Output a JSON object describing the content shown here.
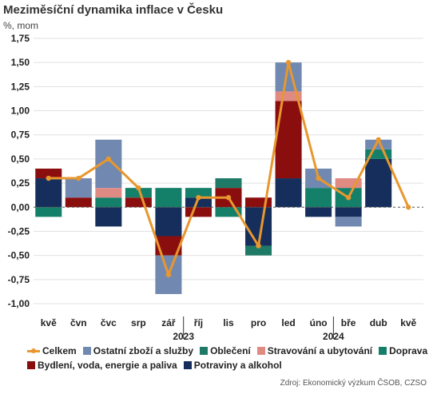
{
  "title": "Meziměsíční dynamika inflace v Česku",
  "unit": "%, mom",
  "source": "Zdroj: Ekonomický výzkum ČSOB, CZSO",
  "colors": {
    "ostatni": "#7189B0",
    "obleceni": "#1E7A66",
    "stravovani": "#E08A84",
    "doprava": "#14806A",
    "bydleni": "#8B0E0E",
    "potraviny": "#152E5B",
    "celkem": "#E8972F"
  },
  "chart_data": {
    "type": "bar",
    "stacked": true,
    "categories": [
      "kvě",
      "čvn",
      "čvc",
      "srp",
      "zář",
      "říj",
      "lis",
      "pro",
      "led",
      "úno",
      "bře",
      "dub",
      "kvě"
    ],
    "year_labels": [
      {
        "label": "2023",
        "after_index": 4
      },
      {
        "label": "2024",
        "after_index": 9
      }
    ],
    "ylim": [
      -1.0,
      1.75
    ],
    "yticks": [
      "1,75",
      "1,50",
      "1,25",
      "1,00",
      "0,75",
      "0,50",
      "0,25",
      "0,00",
      "-0,25",
      "-0,50",
      "-0,75",
      "-1,00"
    ],
    "ytick_values": [
      1.75,
      1.5,
      1.25,
      1.0,
      0.75,
      0.5,
      0.25,
      0.0,
      -0.25,
      -0.5,
      -0.75,
      -1.0
    ],
    "gridlines": true,
    "series": [
      {
        "name": "Potraviny a alkohol",
        "key": "potraviny",
        "values": [
          0.3,
          0.0,
          -0.2,
          0.0,
          -0.3,
          0.1,
          0.0,
          -0.4,
          0.3,
          -0.1,
          -0.1,
          0.5,
          0.0
        ]
      },
      {
        "name": "Bydlení, voda, energie a paliva",
        "key": "bydleni",
        "values": [
          0.1,
          0.1,
          0.0,
          0.1,
          -0.2,
          -0.1,
          0.2,
          0.1,
          0.8,
          0.0,
          0.0,
          0.0,
          0.0
        ]
      },
      {
        "name": "Doprava",
        "key": "doprava",
        "values": [
          -0.1,
          0.0,
          0.1,
          0.1,
          0.2,
          0.1,
          -0.1,
          0.0,
          0.0,
          0.2,
          0.2,
          0.1,
          0.0
        ]
      },
      {
        "name": "Oblečení",
        "key": "obleceni",
        "values": [
          0.0,
          0.0,
          0.0,
          0.0,
          0.0,
          0.0,
          0.1,
          -0.1,
          0.0,
          0.0,
          0.0,
          0.0,
          0.0
        ]
      },
      {
        "name": "Stravování a ubytování",
        "key": "stravovani",
        "values": [
          0.0,
          0.0,
          0.1,
          0.0,
          0.0,
          0.0,
          0.0,
          0.0,
          0.1,
          0.0,
          0.1,
          0.0,
          0.0
        ]
      },
      {
        "name": "Ostatní zboží a služby",
        "key": "ostatni",
        "values": [
          0.0,
          0.2,
          0.5,
          0.0,
          -0.4,
          0.0,
          0.0,
          0.0,
          0.3,
          0.2,
          -0.1,
          0.1,
          0.0
        ]
      }
    ],
    "line": {
      "name": "Celkem",
      "key": "celkem",
      "values": [
        0.3,
        0.3,
        0.5,
        0.2,
        -0.7,
        0.1,
        0.1,
        -0.4,
        1.5,
        0.3,
        0.1,
        0.7,
        0.0
      ]
    },
    "legend": {
      "placement": "bottom",
      "rows": [
        [
          "celkem",
          "ostatni",
          "obleceni",
          "stravovani",
          "doprava"
        ],
        [
          "bydleni",
          "potraviny"
        ]
      ]
    }
  }
}
